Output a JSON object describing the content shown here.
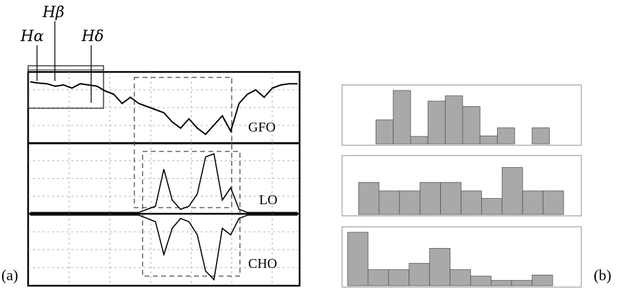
{
  "figure": {
    "panel_a_label": "(a)",
    "panel_b_label": "(b)"
  },
  "chart_data": [
    {
      "type": "line",
      "panel": "a",
      "series_labels": [
        "GFO",
        "LO",
        "CHO"
      ],
      "annotations": [
        "Hα",
        "Hβ",
        "Hδ"
      ],
      "grid": true,
      "description_values": {
        "GFO": [
          0.95,
          0.93,
          0.92,
          0.88,
          0.9,
          0.85,
          0.92,
          0.9,
          0.88,
          0.8,
          0.75,
          0.6,
          0.7,
          0.6,
          0.55,
          0.5,
          0.45,
          0.3,
          0.2,
          0.35,
          0.2,
          0.1,
          0.25,
          0.4,
          0.15,
          0.6,
          0.75,
          0.82,
          0.7,
          0.85,
          0.9,
          0.92,
          0.92
        ],
        "LO": [
          0,
          0,
          0,
          0,
          0,
          0,
          0,
          0,
          0,
          0,
          0,
          0,
          0,
          0,
          0.05,
          0.1,
          0.7,
          0.2,
          0.05,
          0.1,
          0.3,
          0.9,
          0.95,
          0.2,
          0.4,
          0.05,
          0,
          0,
          0,
          0,
          0,
          0,
          0
        ],
        "CHO": [
          0,
          0,
          0,
          0,
          0,
          0,
          0,
          0,
          0,
          0,
          0,
          0,
          0,
          0,
          -0.05,
          -0.1,
          -0.6,
          -0.2,
          -0.05,
          -0.1,
          -0.3,
          -0.85,
          -0.98,
          -0.2,
          -0.3,
          -0.05,
          0,
          0,
          0,
          0,
          0,
          0,
          0
        ]
      }
    },
    {
      "type": "bar",
      "panel": "b",
      "histograms": [
        {
          "values": [
            0,
            0.45,
            1.0,
            0.14,
            0.8,
            0.9,
            0.7,
            0.15,
            0.3,
            0,
            0.3,
            0
          ]
        },
        {
          "values": [
            0.6,
            0.44,
            0.44,
            0.6,
            0.6,
            0.44,
            0.3,
            0.88,
            0.44,
            0.44
          ]
        },
        {
          "values": [
            1.0,
            0.3,
            0.3,
            0.42,
            0.7,
            0.3,
            0.18,
            0.1,
            0.1,
            0.2
          ]
        }
      ]
    }
  ]
}
